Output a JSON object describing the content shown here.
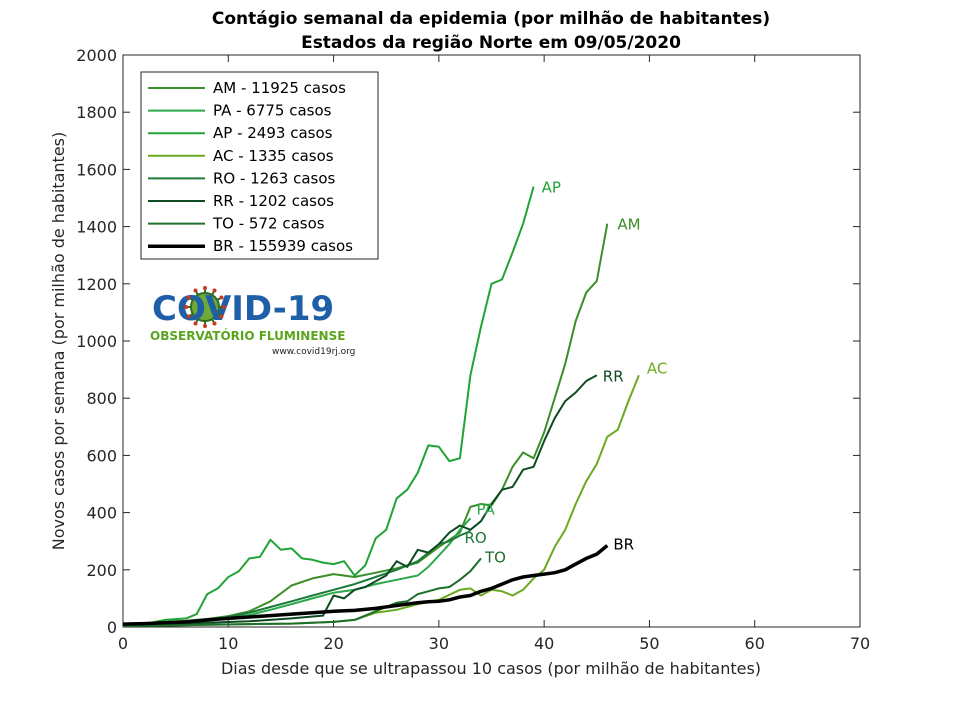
{
  "chart_data": {
    "type": "line",
    "title": "Contágio semanal da epidemia (por milhão de habitantes)",
    "subtitle": "Estados da região Norte  em 09/05/2020",
    "xlabel": "Dias desde que se ultrapassou 10 casos (por milhão de habitantes)",
    "ylabel": "Novos casos por semana (por milhão de habitantes)",
    "xlim": [
      0,
      70
    ],
    "ylim": [
      0,
      2000
    ],
    "xticks": [
      0,
      10,
      20,
      30,
      40,
      50,
      60,
      70
    ],
    "yticks": [
      0,
      200,
      400,
      600,
      800,
      1000,
      1200,
      1400,
      1600,
      1800,
      2000
    ],
    "grid": false,
    "legend_position": "top-left",
    "series": [
      {
        "name": "AM - 11925 casos",
        "end_label": "AM",
        "color": "#3a8f28",
        "x": [
          0,
          2,
          4,
          6,
          8,
          10,
          12,
          14,
          16,
          18,
          20,
          22,
          24,
          26,
          28,
          30,
          32,
          33,
          34,
          35,
          36,
          37,
          38,
          39,
          40,
          41,
          42,
          43,
          44,
          45,
          46
        ],
        "y": [
          10,
          12,
          18,
          22,
          28,
          38,
          55,
          90,
          145,
          170,
          185,
          175,
          190,
          205,
          225,
          280,
          330,
          420,
          430,
          425,
          480,
          560,
          610,
          590,
          680,
          800,
          920,
          1070,
          1170,
          1210,
          1410
        ]
      },
      {
        "name": "PA - 6775 casos",
        "end_label": "PA",
        "color": "#2aa84a",
        "x": [
          0,
          2,
          4,
          6,
          8,
          10,
          12,
          14,
          16,
          18,
          20,
          22,
          24,
          26,
          28,
          29,
          30,
          31,
          32,
          33
        ],
        "y": [
          5,
          8,
          12,
          16,
          22,
          30,
          42,
          60,
          80,
          100,
          120,
          130,
          150,
          165,
          180,
          210,
          250,
          290,
          340,
          380
        ]
      },
      {
        "name": "AP - 2493 casos",
        "end_label": "AP",
        "color": "#22a335",
        "x": [
          0,
          2,
          4,
          6,
          7,
          8,
          9,
          10,
          11,
          12,
          13,
          14,
          15,
          16,
          17,
          18,
          19,
          20,
          21,
          22,
          23,
          24,
          25,
          26,
          27,
          28,
          29,
          30,
          31,
          32,
          33,
          34,
          35,
          36,
          37,
          38,
          39
        ],
        "y": [
          5,
          10,
          25,
          30,
          45,
          115,
          135,
          175,
          195,
          240,
          245,
          305,
          270,
          275,
          240,
          235,
          225,
          220,
          230,
          180,
          215,
          310,
          340,
          450,
          480,
          540,
          635,
          630,
          580,
          590,
          880,
          1050,
          1200,
          1215,
          1310,
          1410,
          1540
        ]
      },
      {
        "name": "AC - 1335 casos",
        "end_label": "AC",
        "color": "#6aaa1e",
        "x": [
          0,
          4,
          8,
          12,
          16,
          20,
          22,
          24,
          26,
          28,
          30,
          32,
          33,
          34,
          35,
          36,
          37,
          38,
          39,
          40,
          41,
          42,
          43,
          44,
          45,
          46,
          47,
          48,
          49
        ],
        "y": [
          5,
          6,
          8,
          10,
          12,
          18,
          25,
          50,
          60,
          80,
          95,
          130,
          135,
          110,
          130,
          125,
          110,
          130,
          170,
          200,
          280,
          340,
          430,
          510,
          570,
          665,
          690,
          790,
          880
        ]
      },
      {
        "name": "RO - 1263 casos",
        "end_label": "RO",
        "color": "#1c7a3a",
        "x": [
          0,
          2,
          4,
          6,
          8,
          10,
          12,
          14,
          16,
          18,
          20,
          22,
          24,
          26,
          28,
          29,
          30,
          31,
          32,
          33
        ],
        "y": [
          5,
          8,
          12,
          18,
          25,
          35,
          50,
          70,
          90,
          110,
          130,
          150,
          175,
          200,
          230,
          260,
          290,
          300,
          320,
          335
        ]
      },
      {
        "name": "RR - 1202 casos",
        "end_label": "RR",
        "color": "#0e4a22",
        "x": [
          0,
          4,
          8,
          12,
          16,
          19,
          20,
          21,
          22,
          23,
          24,
          25,
          26,
          27,
          28,
          29,
          30,
          31,
          32,
          33,
          34,
          35,
          36,
          37,
          38,
          39,
          40,
          41,
          42,
          43,
          44,
          45
        ],
        "y": [
          5,
          10,
          15,
          20,
          30,
          40,
          110,
          100,
          130,
          140,
          160,
          180,
          230,
          210,
          270,
          260,
          290,
          330,
          355,
          340,
          370,
          430,
          480,
          490,
          550,
          560,
          650,
          730,
          790,
          820,
          860,
          880
        ]
      },
      {
        "name": "TO - 572 casos",
        "end_label": "TO",
        "color": "#1e6e2c",
        "x": [
          0,
          4,
          8,
          12,
          16,
          18,
          20,
          22,
          24,
          26,
          27,
          28,
          29,
          30,
          31,
          32,
          33,
          34
        ],
        "y": [
          3,
          5,
          8,
          10,
          12,
          15,
          18,
          25,
          55,
          85,
          90,
          115,
          125,
          135,
          140,
          165,
          195,
          240
        ]
      },
      {
        "name": "BR - 155939 casos",
        "end_label": "BR",
        "color": "#000000",
        "x": [
          0,
          2,
          4,
          6,
          8,
          10,
          12,
          14,
          16,
          18,
          20,
          22,
          24,
          26,
          28,
          29,
          30,
          31,
          32,
          33,
          34,
          35,
          36,
          37,
          38,
          39,
          40,
          41,
          42,
          43,
          44,
          45,
          46
        ],
        "y": [
          10,
          12,
          15,
          18,
          25,
          30,
          35,
          40,
          45,
          50,
          55,
          58,
          65,
          75,
          85,
          88,
          90,
          95,
          105,
          110,
          125,
          135,
          150,
          165,
          175,
          180,
          185,
          190,
          200,
          220,
          240,
          255,
          285
        ]
      }
    ]
  },
  "logo": {
    "main": "COVID-19",
    "sub": "OBSERVATÓRIO FLUMINENSE",
    "url": "www.covid19rj.org"
  }
}
